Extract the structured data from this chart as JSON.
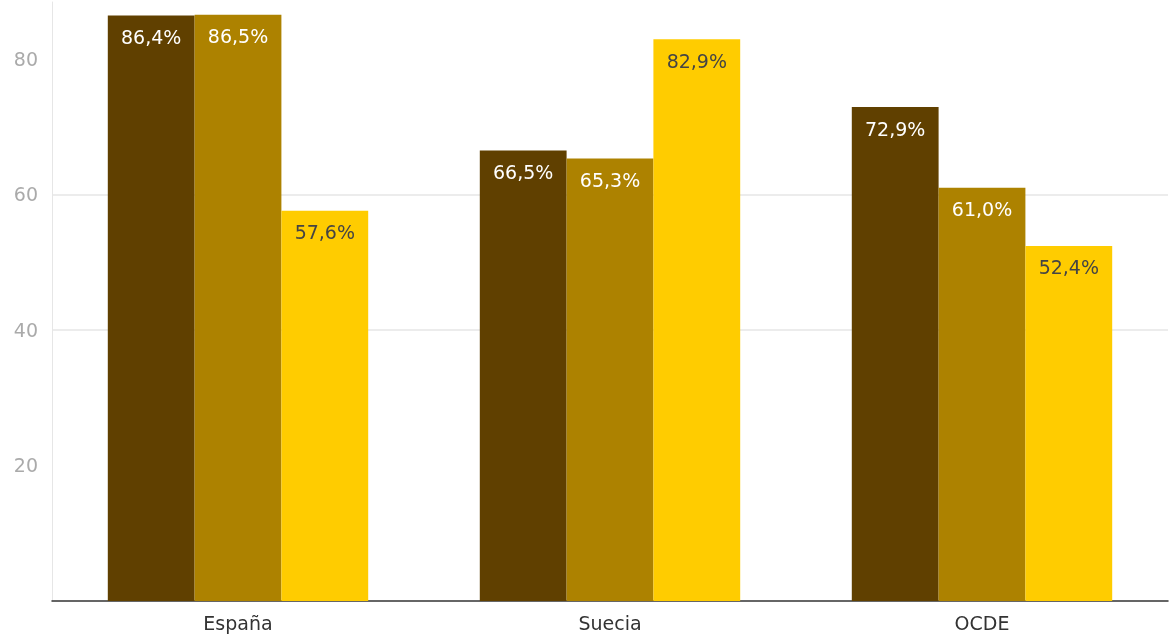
{
  "chart_data": {
    "type": "bar",
    "categories": [
      "España",
      "Suecia",
      "OCDE"
    ],
    "series": [
      {
        "color": "#604000",
        "values": [
          86.4,
          66.5,
          72.9
        ],
        "value_labels": [
          "86,4%",
          "66,5%",
          "72,9%"
        ]
      },
      {
        "color": "#ad8200",
        "values": [
          86.5,
          65.3,
          61.0
        ],
        "value_labels": [
          "86,5%",
          "65,3%",
          "61,0%"
        ]
      },
      {
        "color": "#ffcc00",
        "values": [
          57.6,
          82.9,
          52.4
        ],
        "value_labels": [
          "57,6%",
          "82,9%",
          "52,4%"
        ]
      }
    ],
    "ylim": [
      0,
      88.4
    ],
    "yticks": [
      20,
      40,
      60,
      80
    ],
    "grid": "y"
  }
}
